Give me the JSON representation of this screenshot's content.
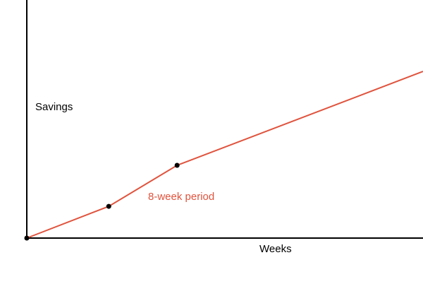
{
  "chart_data": {
    "type": "line",
    "title": "",
    "xlabel": "Weeks",
    "ylabel": "Savings",
    "grid": false,
    "legend": "none",
    "series": [
      {
        "color": "#e0533d",
        "points": [
          {
            "x": 0,
            "y": 0
          },
          {
            "x": 6,
            "y": 2.4
          },
          {
            "x": 11,
            "y": 5.5
          },
          {
            "x": 29,
            "y": 12.6
          }
        ]
      }
    ],
    "annotations": [
      {
        "text": "8-week period",
        "color": "#e0533d"
      }
    ],
    "xlim": [
      0,
      29
    ],
    "ylim": [
      0,
      18
    ]
  }
}
